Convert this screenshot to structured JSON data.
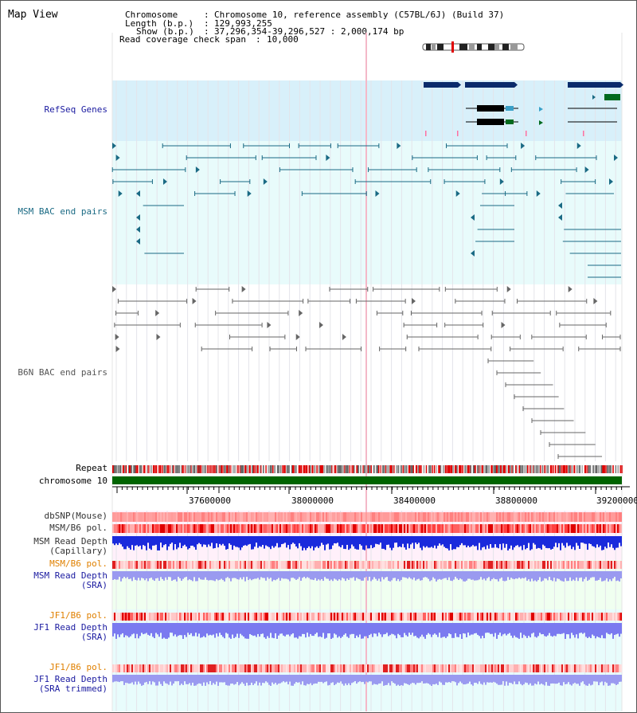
{
  "header": {
    "title": "Map View",
    "chromosome_key": "Chromosome",
    "chromosome_val": "Chromosome 10, reference assembly (C57BL/6J) (Build 37)",
    "length_key": "Length (b.p.)",
    "length_val": "129,993,255",
    "show_key": "Show (b.p.)",
    "show_val": "37,296,354-39,296,527 : 2,000,174 bp",
    "coverage_key": "Read coverage check span",
    "coverage_val": "10,000"
  },
  "tracks": {
    "refseq": "RefSeq Genes",
    "msm_bac": "MSM BAC end pairs",
    "b6n_bac": "B6N BAC end pairs",
    "repeat": "Repeat",
    "chromosome": "chromosome 10",
    "dbsnp": "dbSNP(Mouse)",
    "msm_pol": "MSM/B6 pol.",
    "msm_depth_cap_1": "MSM Read Depth",
    "msm_depth_cap_2": "(Capillary)",
    "msm_pol_sra": "MSM/B6 pol.",
    "msm_depth_sra_1": "MSM Read Depth",
    "msm_depth_sra_2": "(SRA)",
    "jf1_pol": "JF1/B6 pol.",
    "jf1_depth_1": "JF1 Read Depth",
    "jf1_depth_2": "(SRA)",
    "jf1_pol_t": "JF1/B6 pol.",
    "jf1_depth_t_1": "JF1 Read Depth",
    "jf1_depth_t_2": "(SRA trimmed)"
  },
  "axis": {
    "ticks": [
      "37600000",
      "38000000",
      "38400000",
      "38800000",
      "39200000"
    ]
  },
  "colors": {
    "refseq_bg": "#d8f0fa",
    "bac_bg": "#e8fbfb",
    "gene_navy": "#0a2b6b",
    "gene_green": "#006a1e",
    "bac_teal": "#1a6a84",
    "bac_gray": "#666666",
    "chrom_green": "#006400",
    "label_navy": "#1a1aa0",
    "label_teal": "#1a6a84",
    "label_orange": "#e08000"
  }
}
